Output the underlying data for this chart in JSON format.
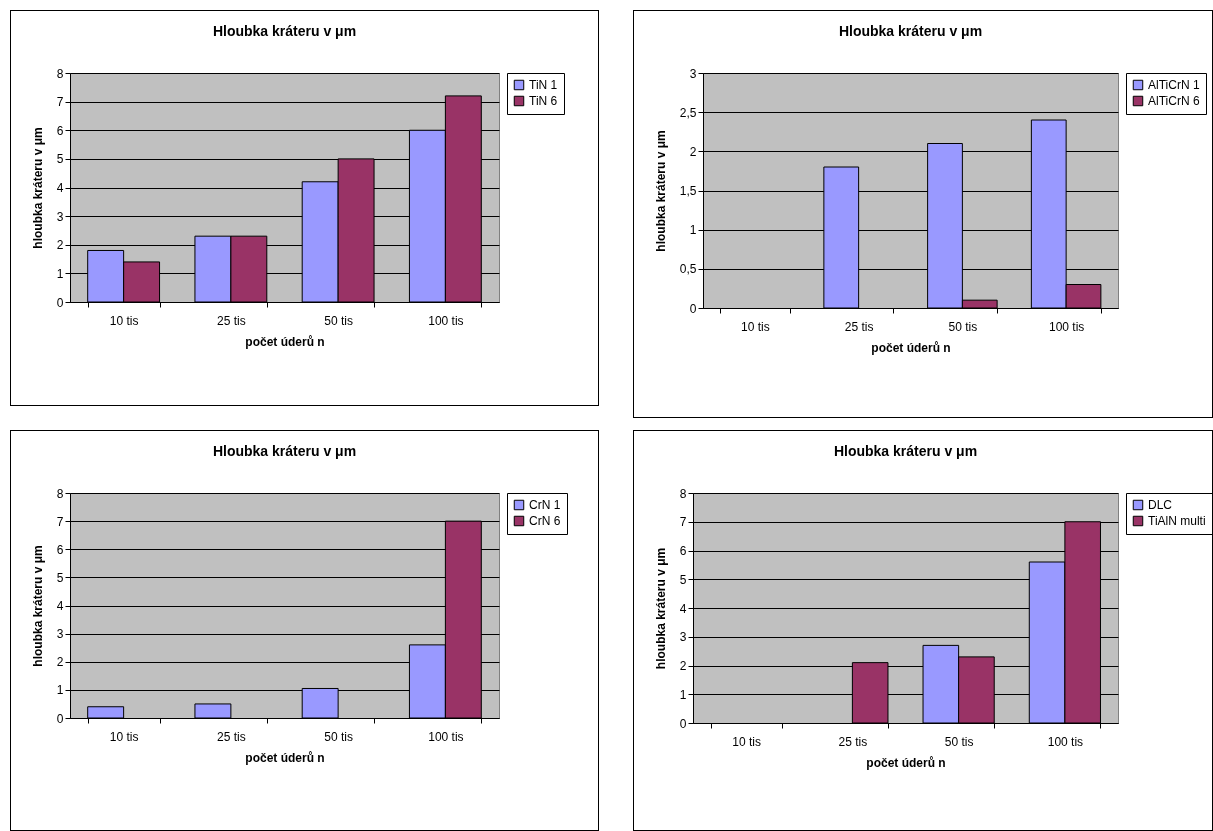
{
  "chart_data": [
    {
      "type": "bar",
      "title": "Hloubka kráteru v μm",
      "xlabel": "počet úderů n",
      "ylabel": "hloubka kráteru v  μm",
      "categories": [
        "10 tis",
        "25 tis",
        "50 tis",
        "100 tis"
      ],
      "ylim": [
        0,
        8
      ],
      "yticks": [
        0,
        1,
        2,
        3,
        4,
        5,
        6,
        7,
        8
      ],
      "grid": "y",
      "legend": "right",
      "series": [
        {
          "name": "TiN 1",
          "color": "#9999ff",
          "values": [
            1.8,
            2.3,
            4.2,
            6.0
          ]
        },
        {
          "name": "TiN 6",
          "color": "#993366",
          "values": [
            1.4,
            2.3,
            5.0,
            7.2
          ]
        }
      ]
    },
    {
      "type": "bar",
      "title": "Hloubka kráteru v μm",
      "xlabel": "počet úderů n",
      "ylabel": "hloubka kráteru v  μm",
      "categories": [
        "10 tis",
        "25 tis",
        "50 tis",
        "100 tis"
      ],
      "ylim": [
        0,
        3
      ],
      "yticks": [
        0,
        {
          "value": 0.5,
          "label": "0,5"
        },
        1,
        {
          "value": 1.5,
          "label": "1,5"
        },
        2,
        {
          "value": 2.5,
          "label": "2,5"
        },
        3
      ],
      "grid": "y",
      "legend": "right",
      "series": [
        {
          "name": "AlTiCrN 1",
          "color": "#9999ff",
          "values": [
            null,
            1.8,
            2.1,
            2.4
          ]
        },
        {
          "name": "AlTiCrN 6",
          "color": "#993366",
          "values": [
            null,
            null,
            0.1,
            0.3
          ]
        }
      ]
    },
    {
      "type": "bar",
      "title": "Hloubka kráteru v μm",
      "xlabel": "počet úderů n",
      "ylabel": "hloubka kráteru v  μm",
      "categories": [
        "10 tis",
        "25 tis",
        "50 tis",
        "100 tis"
      ],
      "ylim": [
        0,
        8
      ],
      "yticks": [
        0,
        1,
        2,
        3,
        4,
        5,
        6,
        7,
        8
      ],
      "grid": "y",
      "legend": "right",
      "series": [
        {
          "name": "CrN 1",
          "color": "#9999ff",
          "values": [
            0.4,
            0.5,
            1.05,
            2.6
          ]
        },
        {
          "name": "CrN 6",
          "color": "#993366",
          "values": [
            null,
            null,
            null,
            7.0
          ]
        }
      ]
    },
    {
      "type": "bar",
      "title": "Hloubka kráteru v μm",
      "xlabel": "počet úderů n",
      "ylabel": "hloubka kráteru v  μm",
      "categories": [
        "10 tis",
        "25 tis",
        "50 tis",
        "100 tis"
      ],
      "ylim": [
        0,
        8
      ],
      "yticks": [
        0,
        1,
        2,
        3,
        4,
        5,
        6,
        7,
        8
      ],
      "grid": "y",
      "legend": "right",
      "series": [
        {
          "name": "DLC",
          "color": "#9999ff",
          "values": [
            null,
            null,
            2.7,
            5.6
          ]
        },
        {
          "name": "TiAlN multi",
          "color": "#993366",
          "values": [
            null,
            2.1,
            2.3,
            7.0
          ]
        }
      ]
    }
  ]
}
